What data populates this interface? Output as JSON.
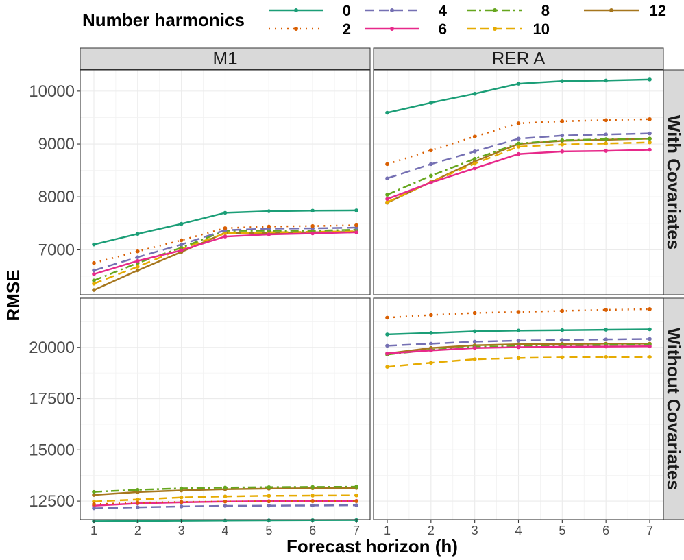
{
  "chart_data": {
    "type": "line",
    "legend": {
      "title": "Number harmonics",
      "placement": "top",
      "entries": [
        "0",
        "2",
        "4",
        "6",
        "8",
        "10",
        "12"
      ]
    },
    "xlabel": "Forecast horizon (h)",
    "ylabel": "RMSE",
    "x": [
      1,
      2,
      3,
      4,
      5,
      6,
      7
    ],
    "x_ticks": [
      "1",
      "2",
      "3",
      "4",
      "5",
      "6",
      "7"
    ],
    "columns": [
      "M1",
      "RER A"
    ],
    "rows": [
      "With Covariates",
      "Without Covariates"
    ],
    "y_axes": [
      {
        "ticks": [
          7000,
          8000,
          9000,
          10000
        ],
        "tick_labels": [
          "7000",
          "8000",
          "9000",
          "10000"
        ],
        "ylim": [
          6150,
          10400
        ]
      },
      {
        "ticks": [
          12500,
          15000,
          17500,
          20000
        ],
        "tick_labels": [
          "12500",
          "15000",
          "17500",
          "20000"
        ],
        "ylim": [
          11600,
          22400
        ]
      }
    ],
    "styles": {
      "0": {
        "color": "#1b9e77",
        "dash": ""
      },
      "2": {
        "color": "#d95f02",
        "dash": "2,7"
      },
      "4": {
        "color": "#7570b3",
        "dash": "14,7"
      },
      "6": {
        "color": "#e7298a",
        "dash": ""
      },
      "8": {
        "color": "#66a61e",
        "dash": "12,5,3,5"
      },
      "10": {
        "color": "#e6ab02",
        "dash": "12,7"
      },
      "12": {
        "color": "#a6761d",
        "dash": ""
      }
    },
    "panels": [
      {
        "row": 0,
        "col": 0,
        "series": [
          {
            "name": "0",
            "values": [
              7100,
              7300,
              7490,
              7700,
              7730,
              7740,
              7745
            ]
          },
          {
            "name": "2",
            "values": [
              6750,
              6970,
              7180,
              7410,
              7440,
              7450,
              7465
            ]
          },
          {
            "name": "4",
            "values": [
              6610,
              6860,
              7100,
              7370,
              7400,
              7405,
              7420
            ]
          },
          {
            "name": "6",
            "values": [
              6540,
              6790,
              6990,
              7250,
              7290,
              7310,
              7330
            ]
          },
          {
            "name": "8",
            "values": [
              6420,
              6750,
              7040,
              7360,
              7360,
              7360,
              7380
            ]
          },
          {
            "name": "10",
            "values": [
              6360,
              6680,
              7020,
              7310,
              7330,
              7340,
              7350
            ]
          },
          {
            "name": "12",
            "values": [
              6240,
              6610,
              6960,
              7320,
              7320,
              7330,
              7340
            ]
          }
        ]
      },
      {
        "row": 0,
        "col": 1,
        "series": [
          {
            "name": "0",
            "values": [
              9590,
              9780,
              9950,
              10140,
              10190,
              10200,
              10220
            ]
          },
          {
            "name": "2",
            "values": [
              8620,
              8880,
              9140,
              9390,
              9430,
              9450,
              9470
            ]
          },
          {
            "name": "4",
            "values": [
              8350,
              8620,
              8860,
              9100,
              9160,
              9180,
              9200
            ]
          },
          {
            "name": "6",
            "values": [
              7960,
              8270,
              8540,
              8810,
              8860,
              8870,
              8890
            ]
          },
          {
            "name": "8",
            "values": [
              8040,
              8400,
              8720,
              9010,
              9070,
              9090,
              9100
            ]
          },
          {
            "name": "10",
            "values": [
              7900,
              8280,
              8630,
              8950,
              8990,
              9010,
              9030
            ]
          },
          {
            "name": "12",
            "values": [
              7890,
              8280,
              8670,
              9000,
              9060,
              9080,
              9100
            ]
          }
        ]
      },
      {
        "row": 1,
        "col": 0,
        "series": [
          {
            "name": "0",
            "values": [
              11520,
              11530,
              11545,
              11555,
              11565,
              11575,
              11580
            ]
          },
          {
            "name": "2",
            "values": [
              12350,
              12420,
              12460,
              12480,
              12490,
              12500,
              12500
            ]
          },
          {
            "name": "4",
            "values": [
              12150,
              12200,
              12240,
              12270,
              12280,
              12290,
              12300
            ]
          },
          {
            "name": "6",
            "values": [
              12280,
              12390,
              12440,
              12480,
              12500,
              12510,
              12510
            ]
          },
          {
            "name": "8",
            "values": [
              12950,
              13050,
              13120,
              13160,
              13180,
              13190,
              13200
            ]
          },
          {
            "name": "10",
            "values": [
              12480,
              12580,
              12680,
              12730,
              12760,
              12770,
              12780
            ]
          },
          {
            "name": "12",
            "values": [
              12800,
              12940,
              13020,
              13080,
              13110,
              13130,
              13140
            ]
          }
        ]
      },
      {
        "row": 1,
        "col": 1,
        "series": [
          {
            "name": "0",
            "values": [
              20630,
              20700,
              20780,
              20820,
              20840,
              20860,
              20880
            ]
          },
          {
            "name": "2",
            "values": [
              21450,
              21580,
              21680,
              21730,
              21780,
              21830,
              21870
            ]
          },
          {
            "name": "4",
            "values": [
              20080,
              20180,
              20280,
              20330,
              20360,
              20390,
              20410
            ]
          },
          {
            "name": "6",
            "values": [
              19700,
              19850,
              19970,
              20010,
              20030,
              20040,
              20050
            ]
          },
          {
            "name": "8",
            "values": [
              19650,
              19880,
              20020,
              20060,
              20090,
              20120,
              20130
            ]
          },
          {
            "name": "10",
            "values": [
              19050,
              19250,
              19420,
              19480,
              19510,
              19530,
              19530
            ]
          },
          {
            "name": "12",
            "values": [
              19700,
              19970,
              20100,
              20150,
              20170,
              20180,
              20180
            ]
          }
        ]
      }
    ]
  }
}
